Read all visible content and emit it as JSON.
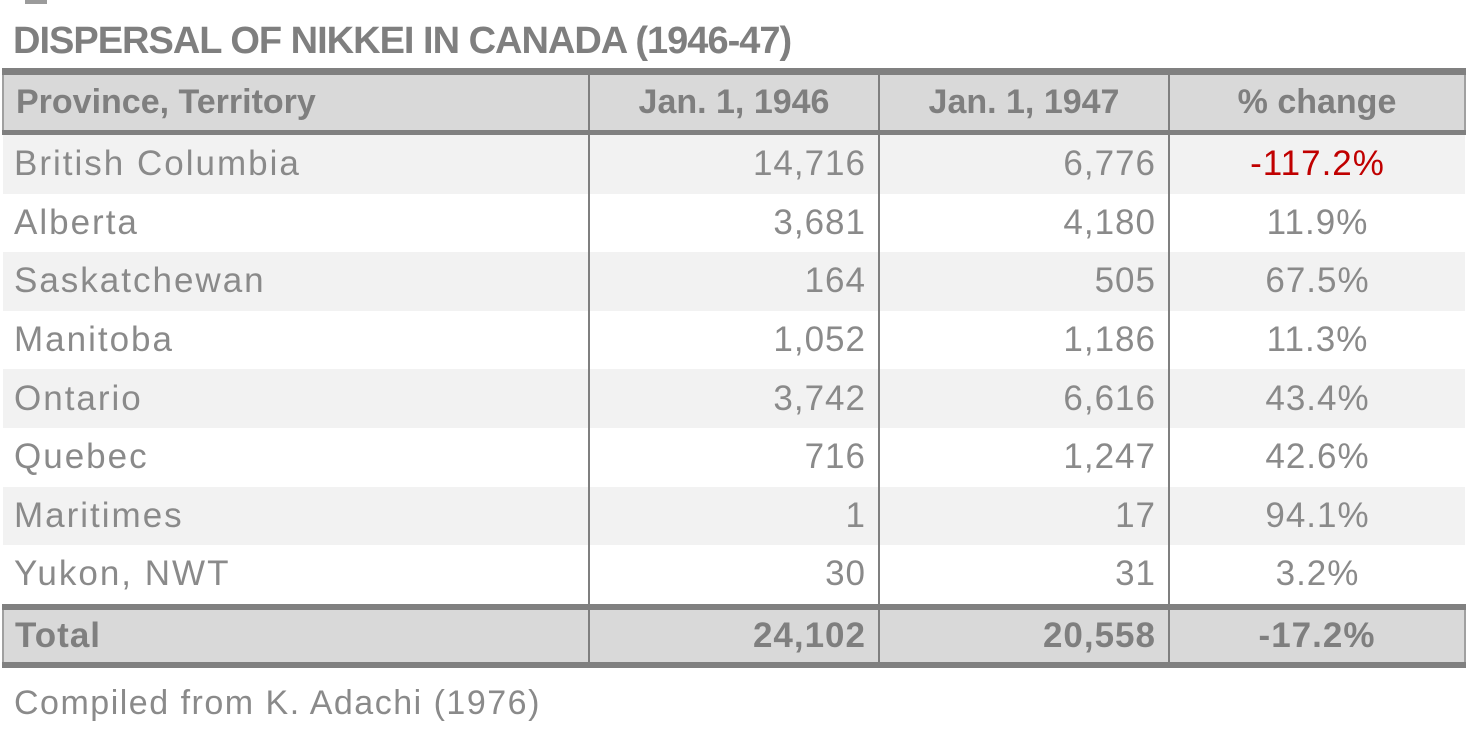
{
  "title": "DISPERSAL OF NIKKEI IN CANADA (1946-47)",
  "source_note": "Compiled from K. Adachi (1976)",
  "table": {
    "columns": [
      "Province, Territory",
      "Jan. 1, 1946",
      "Jan. 1, 1947",
      "% change"
    ],
    "rows": [
      {
        "province": "British Columbia",
        "jan1946": "14,716",
        "jan1947": "6,776",
        "change": "-117.2%",
        "change_red": true
      },
      {
        "province": "Alberta",
        "jan1946": "3,681",
        "jan1947": "4,180",
        "change": "11.9%",
        "change_red": false
      },
      {
        "province": "Saskatchewan",
        "jan1946": "164",
        "jan1947": "505",
        "change": "67.5%",
        "change_red": false
      },
      {
        "province": "Manitoba",
        "jan1946": "1,052",
        "jan1947": "1,186",
        "change": "11.3%",
        "change_red": false
      },
      {
        "province": "Ontario",
        "jan1946": "3,742",
        "jan1947": "6,616",
        "change": "43.4%",
        "change_red": false
      },
      {
        "province": "Quebec",
        "jan1946": "716",
        "jan1947": "1,247",
        "change": "42.6%",
        "change_red": false
      },
      {
        "province": "Maritimes",
        "jan1946": "1",
        "jan1947": "17",
        "change": "94.1%",
        "change_red": false
      },
      {
        "province": "Yukon, NWT",
        "jan1946": "30",
        "jan1947": "31",
        "change": "3.2%",
        "change_red": false
      }
    ],
    "total": {
      "province": "Total",
      "jan1946": "24,102",
      "jan1947": "20,558",
      "change": "-17.2%"
    }
  },
  "chart_data": {
    "type": "table",
    "title": "DISPERSAL OF NIKKEI IN CANADA (1946-47)",
    "columns": [
      "Province, Territory",
      "Jan. 1, 1946",
      "Jan. 1, 1947",
      "% change"
    ],
    "rows": [
      [
        "British Columbia",
        14716,
        6776,
        "-117.2%"
      ],
      [
        "Alberta",
        3681,
        4180,
        "11.9%"
      ],
      [
        "Saskatchewan",
        164,
        505,
        "67.5%"
      ],
      [
        "Manitoba",
        1052,
        1186,
        "11.3%"
      ],
      [
        "Ontario",
        3742,
        6616,
        "43.4%"
      ],
      [
        "Quebec",
        716,
        1247,
        "42.6%"
      ],
      [
        "Maritimes",
        1,
        17,
        "94.1%"
      ],
      [
        "Yukon, NWT",
        30,
        31,
        "3.2%"
      ]
    ],
    "total_row": [
      "Total",
      24102,
      20558,
      "-17.2%"
    ],
    "source": "Compiled from K. Adachi (1976)",
    "layout_hints": {
      "zebra_striping": true,
      "negative_highlight_cell": "British Columbia % change"
    }
  },
  "colors": {
    "heading_gray": "#7f7f7f",
    "text_gray": "#8a8a8a",
    "negative_red": "#c00000",
    "header_bg": "#d9d9d9",
    "zebra_bg": "#f2f2f2",
    "border_gray": "#808080"
  }
}
